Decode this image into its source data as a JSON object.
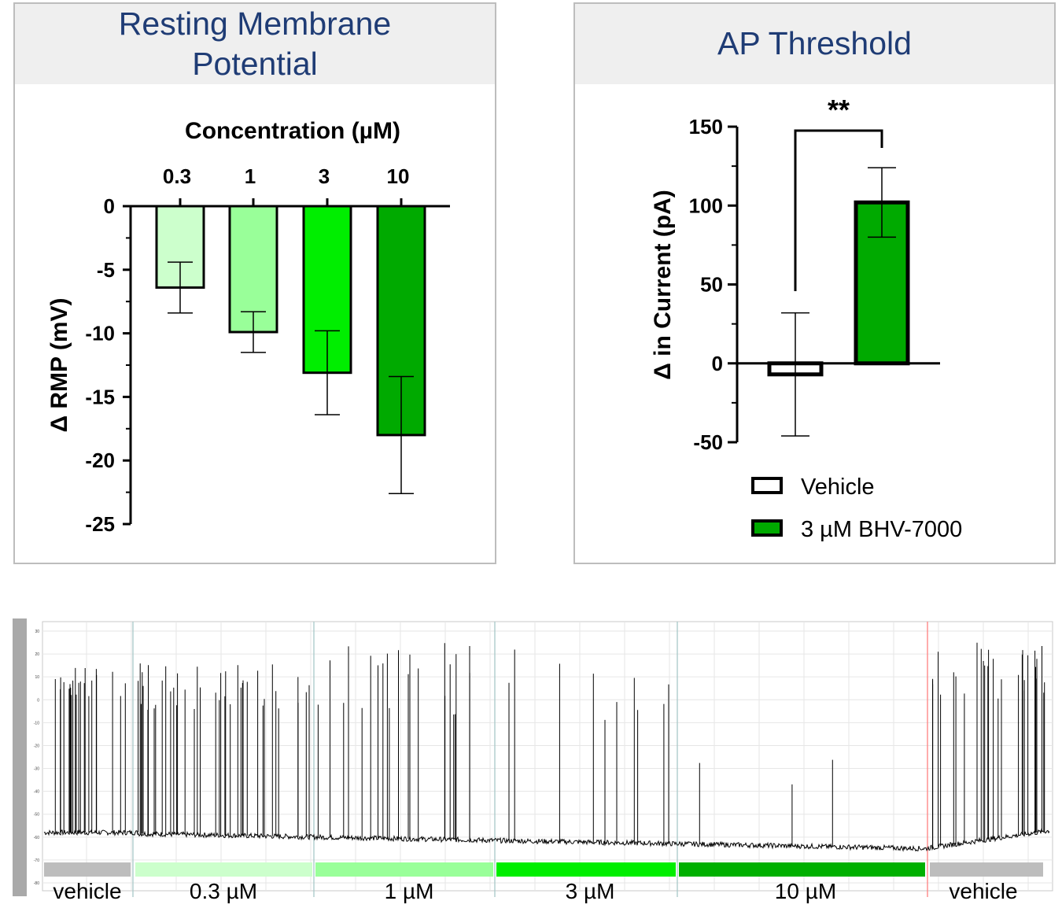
{
  "rmp_panel": {
    "title_line1": "Resting Membrane",
    "title_line2": "Potential"
  },
  "ap_panel": {
    "title": "AP Threshold"
  },
  "chart_data": [
    {
      "type": "bar",
      "xlabel": "Concentration (µM)",
      "ylabel": "Δ RMP (mV)",
      "categories": [
        "0.3",
        "1",
        "3",
        "10"
      ],
      "values": [
        -6.4,
        -9.9,
        -13.1,
        -18.0
      ],
      "errors": [
        2.0,
        1.6,
        3.3,
        4.6
      ],
      "colors": [
        "#ccffcc",
        "#99ff99",
        "#00ee00",
        "#00aa00"
      ],
      "ylim": [
        -25,
        0
      ],
      "yticks": [
        "0",
        "-5",
        "-10",
        "-15",
        "-20",
        "-25"
      ],
      "x_axis_position": "top"
    },
    {
      "type": "bar",
      "ylabel": "Δ in Current (pA)",
      "categories": [
        "Vehicle",
        "3 µM BHV-7000"
      ],
      "values": [
        -7,
        102
      ],
      "errors": [
        39,
        22
      ],
      "colors": [
        "#ffffff",
        "#00aa00"
      ],
      "ylim": [
        -50,
        150
      ],
      "yticks": [
        "150",
        "100",
        "50",
        "0",
        "-50"
      ],
      "significance": "**",
      "legend": [
        {
          "label": "Vehicle",
          "color": "#ffffff"
        },
        {
          "label": "3 µM BHV-7000",
          "color": "#00aa00"
        }
      ],
      "legend_position": "bottom"
    }
  ],
  "trace": {
    "conditions": [
      {
        "label": "vehicle",
        "color": "#bdbdbd"
      },
      {
        "label": "0.3 µM",
        "color": "#ccffcc"
      },
      {
        "label": "1 µM",
        "color": "#99ff99"
      },
      {
        "label": "3 µM",
        "color": "#00ee00"
      },
      {
        "label": "10 µM",
        "color": "#00b000"
      },
      {
        "label": "vehicle",
        "color": "#bdbdbd"
      }
    ],
    "y_ticks": [
      "30",
      "20",
      "10",
      "0",
      "-10",
      "-20",
      "-30",
      "-40",
      "-50",
      "-60",
      "-70",
      "-80"
    ]
  }
}
